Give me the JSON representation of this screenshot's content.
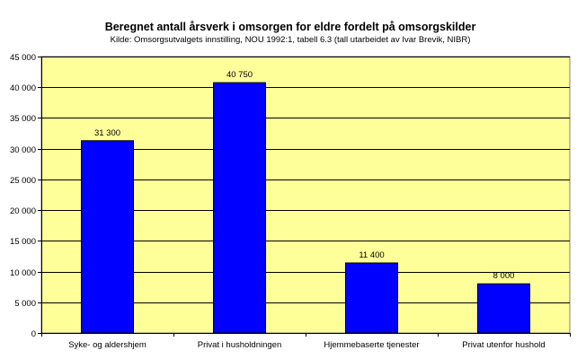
{
  "chart_data": {
    "type": "bar",
    "title": "Beregnet antall årsverk i omsorgen for eldre fordelt på omsorgskilder",
    "subtitle": "Kilde: Omsorgsutvalgets innstilling, NOU 1992:1, tabell 6.3 (tall utarbeidet av Ivar Brevik, NIBR)",
    "categories": [
      "Syke- og aldershjem",
      "Privat i husholdningen",
      "Hjemmebaserte tjenester",
      "Privat utenfor hushold"
    ],
    "values": [
      31300,
      40750,
      11400,
      8000
    ],
    "value_labels": [
      "31 300",
      "40 750",
      "11 400",
      "8 000"
    ],
    "ylim": [
      0,
      45000
    ],
    "yticks": [
      0,
      5000,
      10000,
      15000,
      20000,
      25000,
      30000,
      35000,
      40000,
      45000
    ],
    "ytick_labels": [
      "0",
      "5 000",
      "10 000",
      "15 000",
      "20 000",
      "25 000",
      "30 000",
      "35 000",
      "40 000",
      "45 000"
    ],
    "xlabel": "",
    "ylabel": "",
    "grid": true,
    "colors": {
      "bar": "#0000ff",
      "bar_stroke": "#000000",
      "plot_background": "#ffff99",
      "gridline": "#000000"
    }
  }
}
